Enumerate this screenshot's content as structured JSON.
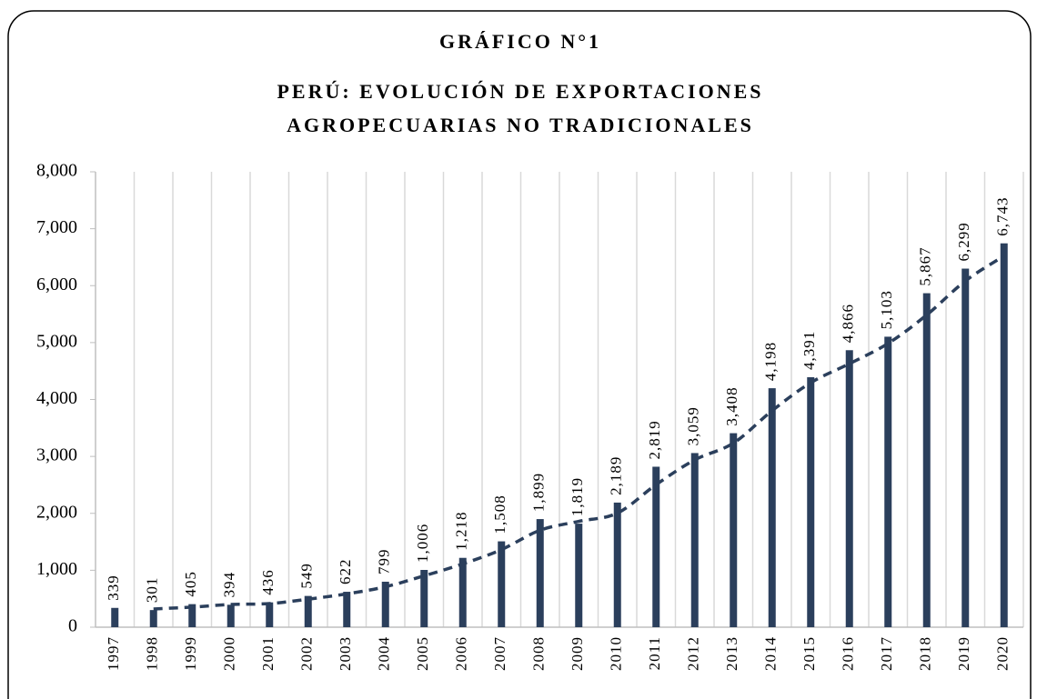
{
  "chart_data": {
    "type": "bar",
    "title": "GRÁFICO N°1",
    "subtitle": [
      "PERÚ: EVOLUCIÓN DE EXPORTACIONES",
      "AGROPECUARIAS NO TRADICIONALES"
    ],
    "categories": [
      "1997",
      "1998",
      "1999",
      "2000",
      "2001",
      "2002",
      "2003",
      "2004",
      "2005",
      "2006",
      "2007",
      "2008",
      "2009",
      "2010",
      "2011",
      "2012",
      "2013",
      "2014",
      "2015",
      "2016",
      "2017",
      "2018",
      "2019",
      "2020"
    ],
    "values": [
      339,
      301,
      405,
      394,
      436,
      549,
      622,
      799,
      1006,
      1218,
      1508,
      1899,
      1819,
      2189,
      2819,
      3059,
      3408,
      4198,
      4391,
      4866,
      5103,
      5867,
      6299,
      6743
    ],
    "value_labels": [
      "339",
      "301",
      "405",
      "394",
      "436",
      "549",
      "622",
      "799",
      "1,006",
      "1,218",
      "1,508",
      "1,899",
      "1,819",
      "2,189",
      "2,819",
      "3,059",
      "3,408",
      "4,198",
      "4,391",
      "4,866",
      "5,103",
      "5,867",
      "6,299",
      "6,743"
    ],
    "color": "#2b3f5c",
    "ylim": [
      0,
      8000
    ],
    "yticks": [
      0,
      {
        "value": 1000,
        "label": "1,000"
      },
      {
        "value": 2000,
        "label": "2,000"
      },
      {
        "value": 3000,
        "label": "3,000"
      },
      {
        "value": 4000,
        "label": "4,000"
      },
      {
        "value": 5000,
        "label": "5,000"
      },
      {
        "value": 6000,
        "label": "6,000"
      },
      {
        "value": 7000,
        "label": "7,000"
      },
      {
        "value": 8000,
        "label": "8,000"
      }
    ],
    "grid": "vertical",
    "trendline": {
      "period": 2,
      "color": "#2b3f5c",
      "style": "dashed"
    }
  }
}
